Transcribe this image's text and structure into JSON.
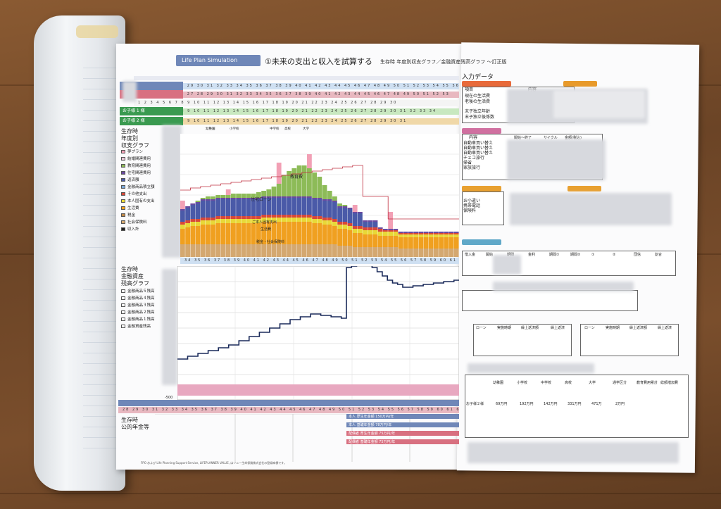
{
  "header": {
    "badge": "Life Plan Simulation",
    "title": "①未来の支出と収入を試算する",
    "subtitle": "生存時 年度別収支グラフ／金融資産残高グラフ 〜訂正版"
  },
  "left_labels": {
    "chart1_title": [
      "生存時",
      "年度別",
      "収支グラフ"
    ],
    "chart2_title": [
      "生存時",
      "金融資産",
      "残高グラフ"
    ],
    "chart3_title": [
      "生存時",
      "公的年金等"
    ],
    "child1": "お子様 1 様",
    "child2": "お子様 2 様",
    "axis_min": "-500"
  },
  "legend1": [
    {
      "label": "夢プラン",
      "color": "#f2a0b5"
    },
    {
      "label": "結婚関連費用",
      "color": "#e8c8d8"
    },
    {
      "label": "教育関連費用",
      "color": "#8dbb58"
    },
    {
      "label": "住宅関連費用",
      "color": "#6a4aa0"
    },
    {
      "label": "返済額",
      "color": "#4a5aa8"
    },
    {
      "label": "金融商品積立額",
      "color": "#7aa8d8"
    },
    {
      "label": "その他支出",
      "color": "#d84838"
    },
    {
      "label": "本人固有の支出",
      "color": "#e8d838"
    },
    {
      "label": "生活費",
      "color": "#f0a020"
    },
    {
      "label": "税金",
      "color": "#c08848"
    },
    {
      "label": "社会保険料",
      "color": "#d4a870"
    },
    {
      "label": "収入計",
      "color": "#222222"
    }
  ],
  "legend2": [
    "金融商品５残高",
    "金融商品４残高",
    "金融商品３残高",
    "金融商品２残高",
    "金融商品１残高",
    "金融資産残高"
  ],
  "chart_labels": {
    "edu": "教育費",
    "loan": "住宅ローン",
    "living": "ご本人固有支出",
    "living2": "生活費",
    "tax": "税金・社会保険料"
  },
  "school_labels": [
    "幼稚園",
    "小学校",
    "中学校",
    "高校",
    "大学"
  ],
  "right": {
    "title": "入力データ",
    "section1_rows": [
      "現在の生活費",
      "老後の生活費",
      "末子独立年齢",
      "末子独立後係数"
    ],
    "section1_cols": [
      "項目",
      "内容"
    ],
    "section2_cols": [
      "内容",
      "開始～終了",
      "サイクル",
      "金額(税込)"
    ],
    "section2_rows": [
      "自動車買い替え",
      "自動車買い替え",
      "自動車買い替え",
      "チェコ旅行",
      "帰省",
      "家族旅行"
    ],
    "section3_rows": [
      "お小遣い",
      "携帯電話",
      "保険料"
    ],
    "loan_cols": [
      "借入金",
      "開始",
      "期間",
      "金利",
      "期間①",
      "期間②",
      "①",
      "②",
      "団信",
      "割合"
    ],
    "repay_cols": [
      "ローン",
      "実施時期",
      "繰上返済額",
      "繰上返済"
    ],
    "edu_cols": [
      "幼稚園",
      "小学校",
      "中学校",
      "高校",
      "大学",
      "通学区分",
      "教育費用累計",
      "総額増加費"
    ],
    "edu_row_label": "お子様２様",
    "edu_values": [
      "69万円",
      "192万円",
      "142万円",
      "331万円",
      "471万",
      "2万円"
    ]
  },
  "pension_notes": [
    "本人 厚生年金額 150万円/年",
    "本人 基礎年金額 78万円/年",
    "配偶者 厚生年金額 75万円/年",
    "配偶者 基礎年金額 75万円/年"
  ],
  "footnote": "FPO および Life Planning Support Service, LIFEPLANNER VALUE, はソニー生命保険株式会社の登録商標です。"
}
